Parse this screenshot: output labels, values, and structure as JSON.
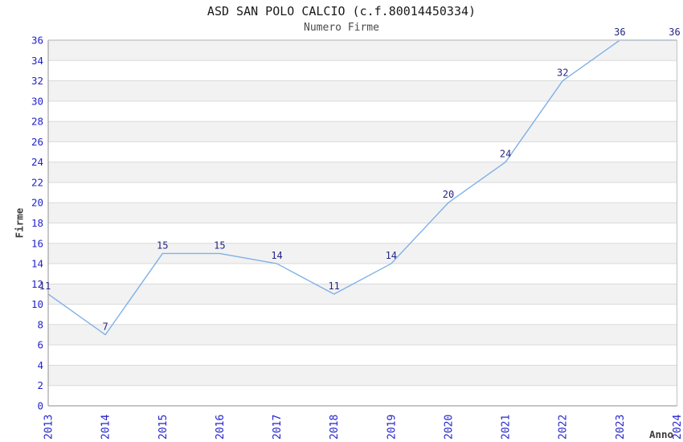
{
  "chart_data": {
    "type": "line",
    "title": "ASD SAN POLO CALCIO (c.f.80014450334)",
    "subtitle": "Numero Firme",
    "xlabel": "Anno",
    "ylabel": "Firme",
    "x": [
      2013,
      2014,
      2015,
      2016,
      2017,
      2018,
      2019,
      2020,
      2021,
      2022,
      2023,
      2024
    ],
    "series": [
      {
        "name": "Numero Firme",
        "values": [
          11,
          7,
          15,
          15,
          14,
          11,
          14,
          20,
          24,
          32,
          36,
          36
        ]
      }
    ],
    "data_labels_visible": true,
    "ylim": [
      0,
      36
    ],
    "ytick_step": 2,
    "grid": "horizontal-lines-with-alternating-bands",
    "legend": "none",
    "colors": {
      "line": "#7fb0e6",
      "tick_label": "#2323cc",
      "data_label": "#252582",
      "band": "#f2f2f2",
      "grid_line": "#dadada",
      "plot_border": "#c9c9c9",
      "axis_line": "#a3a3a3",
      "title": "#1a1a1a",
      "subtitle": "#4a4a4a",
      "axis_title": "#3d3d3d"
    }
  }
}
